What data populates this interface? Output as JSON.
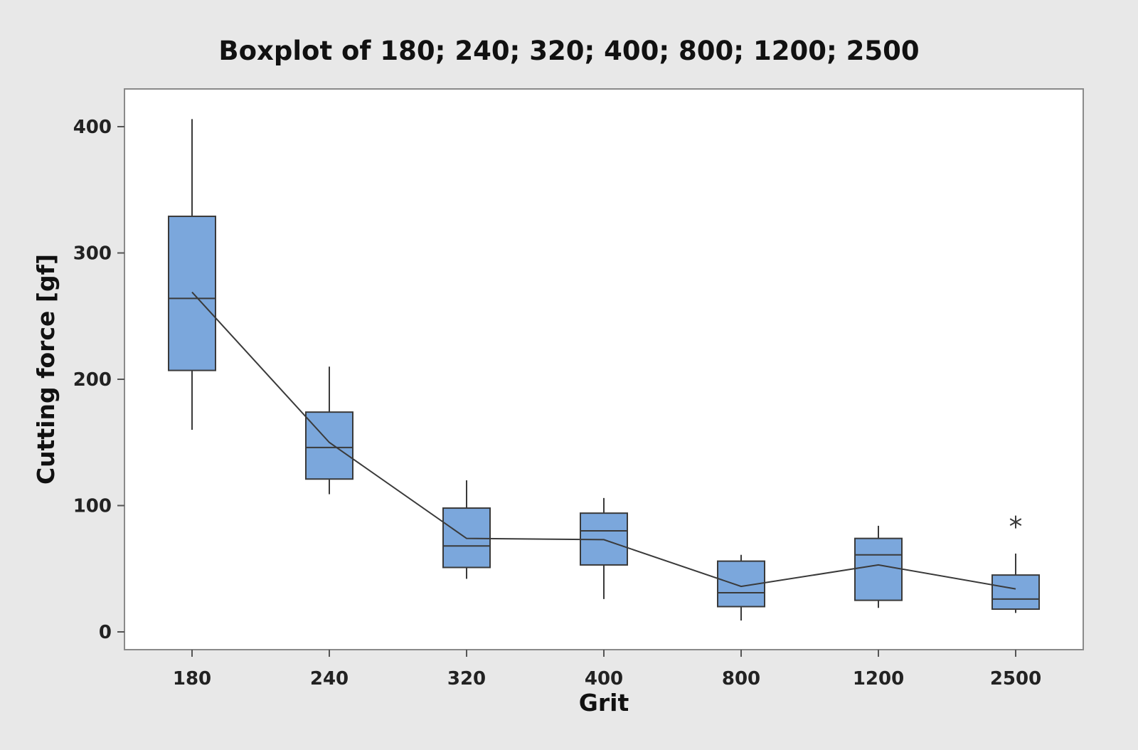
{
  "chart_data": {
    "type": "boxplot",
    "title": "Boxplot of 180; 240; 320; 400; 800; 1200; 2500",
    "xlabel": "Grit",
    "ylabel": "Cutting force [gf]",
    "ylim": [
      -15,
      430
    ],
    "yticks": [
      0,
      100,
      200,
      300,
      400
    ],
    "ytick_labels": [
      "0",
      "100",
      "200",
      "300",
      "400"
    ],
    "categories": [
      "180",
      "240",
      "320",
      "400",
      "800",
      "1200",
      "2500"
    ],
    "boxes": [
      {
        "category": "180",
        "whisker_low": 160,
        "q1": 207,
        "median": 264,
        "q3": 329,
        "whisker_high": 406,
        "mean": 269,
        "outliers": []
      },
      {
        "category": "240",
        "whisker_low": 109,
        "q1": 121,
        "median": 146,
        "q3": 174,
        "whisker_high": 210,
        "mean": 150,
        "outliers": []
      },
      {
        "category": "320",
        "whisker_low": 42,
        "q1": 51,
        "median": 68,
        "q3": 98,
        "whisker_high": 120,
        "mean": 74,
        "outliers": []
      },
      {
        "category": "400",
        "whisker_low": 26,
        "q1": 53,
        "median": 80,
        "q3": 94,
        "whisker_high": 106,
        "mean": 73,
        "outliers": []
      },
      {
        "category": "800",
        "whisker_low": 9,
        "q1": 20,
        "median": 31,
        "q3": 56,
        "whisker_high": 61,
        "mean": 36,
        "outliers": []
      },
      {
        "category": "1200",
        "whisker_low": 19,
        "q1": 25,
        "median": 61,
        "q3": 74,
        "whisker_high": 84,
        "mean": 53,
        "outliers": []
      },
      {
        "category": "2500",
        "whisker_low": 15,
        "q1": 18,
        "median": 26,
        "q3": 45,
        "whisker_high": 62,
        "mean": 34,
        "outliers": [
          87
        ]
      }
    ],
    "mean_connect_line": true,
    "grid": false,
    "colors": {
      "box_fill": "#7ba7dc",
      "box_stroke": "#3a3a3a",
      "line": "#3a3a3a",
      "outer_background": "#e8e8e8",
      "plot_background": "#ffffff"
    }
  }
}
